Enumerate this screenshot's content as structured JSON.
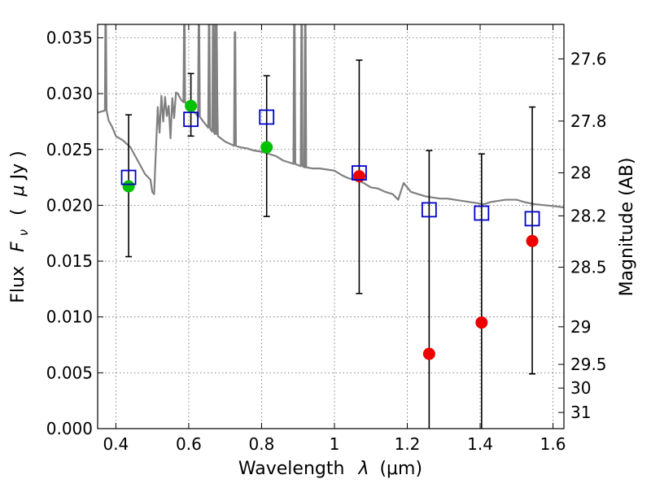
{
  "chart_data": {
    "type": "scatter",
    "xlabel": "Wavelength",
    "xlabel_symbol": "λ",
    "xlabel_unit": "(μm)",
    "ylabel": "Flux",
    "ylabel_symbol": "F",
    "ylabel_symbol_sub": "ν",
    "ylabel_unit_open": "(",
    "ylabel_unit_mu": "μ",
    "ylabel_unit_rest": "Jy )",
    "y2label": "Magnitude (AB)",
    "xlim": [
      0.35,
      1.63
    ],
    "ylim": [
      0.0,
      0.0362
    ],
    "grid": true,
    "legend": "none",
    "x_ticks": [
      0.4,
      0.6,
      0.8,
      1.0,
      1.2,
      1.4,
      1.6
    ],
    "x_tick_labels": [
      "0.4",
      "0.6",
      "0.8",
      "1",
      "1.2",
      "1.4",
      "1.6"
    ],
    "y_ticks": [
      0.0,
      0.005,
      0.01,
      0.015,
      0.02,
      0.025,
      0.03,
      0.035
    ],
    "y_tick_labels": [
      "0.000",
      "0.005",
      "0.010",
      "0.015",
      "0.020",
      "0.025",
      "0.030",
      "0.035"
    ],
    "y2_ticks": [
      {
        "label": "27.6",
        "mag": 27.6
      },
      {
        "label": "27.8",
        "mag": 27.8
      },
      {
        "label": "28",
        "mag": 28.0
      },
      {
        "label": "28.2",
        "mag": 28.2
      },
      {
        "label": "28.5",
        "mag": 28.5
      },
      {
        "label": "29",
        "mag": 29.0
      },
      {
        "label": "29.5",
        "mag": 29.5
      },
      {
        "label": "30",
        "mag": 30.0
      },
      {
        "label": "31",
        "mag": 31.0
      }
    ],
    "series": [
      {
        "marker": "square-open",
        "color": "#0000cc",
        "points": [
          {
            "x": 0.435,
            "y": 0.0225,
            "yerr_low": 0.0154,
            "yerr_high": 0.0281
          },
          {
            "x": 0.606,
            "y": 0.0277,
            "yerr_low": 0.0262,
            "yerr_high": 0.0318
          },
          {
            "x": 0.814,
            "y": 0.0279,
            "yerr_low": 0.019,
            "yerr_high": 0.0316
          },
          {
            "x": 1.068,
            "y": 0.0229,
            "yerr_low": 0.0121,
            "yerr_high": 0.033
          },
          {
            "x": 1.26,
            "y": 0.0196,
            "yerr_low": 0.0,
            "yerr_high": 0.0249
          },
          {
            "x": 1.404,
            "y": 0.0193,
            "yerr_low": 0.0,
            "yerr_high": 0.0246
          },
          {
            "x": 1.543,
            "y": 0.0188,
            "yerr_low": 0.0049,
            "yerr_high": 0.0288
          }
        ]
      },
      {
        "marker": "circle",
        "color": "#00c000",
        "points": [
          {
            "x": 0.435,
            "y": 0.0217
          },
          {
            "x": 0.606,
            "y": 0.0289
          },
          {
            "x": 0.814,
            "y": 0.0252
          }
        ]
      },
      {
        "marker": "circle",
        "color": "#ee0000",
        "points": [
          {
            "x": 1.068,
            "y": 0.0226
          },
          {
            "x": 1.26,
            "y": 0.0067
          },
          {
            "x": 1.404,
            "y": 0.0095
          },
          {
            "x": 1.543,
            "y": 0.0168
          }
        ]
      },
      {
        "marker": "line",
        "color": "#808080",
        "points": [
          [
            0.35,
            0.0283
          ],
          [
            0.37,
            0.0287
          ],
          [
            0.38,
            0.0276
          ],
          [
            0.39,
            0.027
          ],
          [
            0.4,
            0.0262
          ],
          [
            0.42,
            0.0258
          ],
          [
            0.44,
            0.0252
          ],
          [
            0.46,
            0.024
          ],
          [
            0.48,
            0.0228
          ],
          [
            0.495,
            0.0223
          ],
          [
            0.5,
            0.0212
          ],
          [
            0.505,
            0.021
          ],
          [
            0.51,
            0.025
          ],
          [
            0.515,
            0.0288
          ],
          [
            0.52,
            0.0265
          ],
          [
            0.525,
            0.0298
          ],
          [
            0.53,
            0.0275
          ],
          [
            0.535,
            0.0297
          ],
          [
            0.54,
            0.028
          ],
          [
            0.545,
            0.0289
          ],
          [
            0.55,
            0.026
          ],
          [
            0.555,
            0.0296
          ],
          [
            0.56,
            0.0278
          ],
          [
            0.565,
            0.0301
          ],
          [
            0.57,
            0.03
          ],
          [
            0.58,
            0.0294
          ],
          [
            0.59,
            0.0292
          ],
          [
            0.6,
            0.0287
          ],
          [
            0.62,
            0.0282
          ],
          [
            0.64,
            0.0275
          ],
          [
            0.66,
            0.0268
          ],
          [
            0.68,
            0.0262
          ],
          [
            0.7,
            0.0257
          ],
          [
            0.72,
            0.0254
          ],
          [
            0.74,
            0.0252
          ],
          [
            0.76,
            0.0251
          ],
          [
            0.78,
            0.0249
          ],
          [
            0.8,
            0.0248
          ],
          [
            0.82,
            0.0246
          ],
          [
            0.84,
            0.0244
          ],
          [
            0.86,
            0.024
          ],
          [
            0.88,
            0.0238
          ],
          [
            0.9,
            0.0236
          ],
          [
            0.92,
            0.0234
          ],
          [
            0.94,
            0.0233
          ],
          [
            0.96,
            0.0233
          ],
          [
            0.98,
            0.0232
          ],
          [
            1.0,
            0.0231
          ],
          [
            1.02,
            0.0227
          ],
          [
            1.04,
            0.0224
          ],
          [
            1.06,
            0.0223
          ],
          [
            1.08,
            0.022
          ],
          [
            1.1,
            0.0216
          ],
          [
            1.12,
            0.0215
          ],
          [
            1.14,
            0.0212
          ],
          [
            1.16,
            0.021
          ],
          [
            1.175,
            0.0205
          ],
          [
            1.19,
            0.022
          ],
          [
            1.21,
            0.0212
          ],
          [
            1.23,
            0.021
          ],
          [
            1.25,
            0.0208
          ],
          [
            1.27,
            0.0207
          ],
          [
            1.29,
            0.0206
          ],
          [
            1.31,
            0.0206
          ],
          [
            1.33,
            0.0205
          ],
          [
            1.35,
            0.0204
          ],
          [
            1.37,
            0.0203
          ],
          [
            1.39,
            0.0202
          ],
          [
            1.41,
            0.0201
          ],
          [
            1.43,
            0.0203
          ],
          [
            1.45,
            0.0204
          ],
          [
            1.47,
            0.0205
          ],
          [
            1.5,
            0.0205
          ],
          [
            1.52,
            0.0203
          ],
          [
            1.55,
            0.0201
          ],
          [
            1.58,
            0.02
          ],
          [
            1.61,
            0.0199
          ],
          [
            1.63,
            0.0198
          ]
        ],
        "spikes": [
          {
            "x": 0.372,
            "top": 0.0362
          },
          {
            "x": 0.588,
            "top": 0.0362
          },
          {
            "x": 0.628,
            "top": 0.0362
          },
          {
            "x": 0.656,
            "top": 0.0362
          },
          {
            "x": 0.667,
            "top": 0.0362
          },
          {
            "x": 0.674,
            "top": 0.0362
          },
          {
            "x": 0.676,
            "top": 0.0362
          },
          {
            "x": 0.727,
            "top": 0.0355
          },
          {
            "x": 0.89,
            "top": 0.0362
          },
          {
            "x": 0.91,
            "top": 0.0362
          },
          {
            "x": 0.92,
            "top": 0.0362
          }
        ]
      }
    ]
  }
}
